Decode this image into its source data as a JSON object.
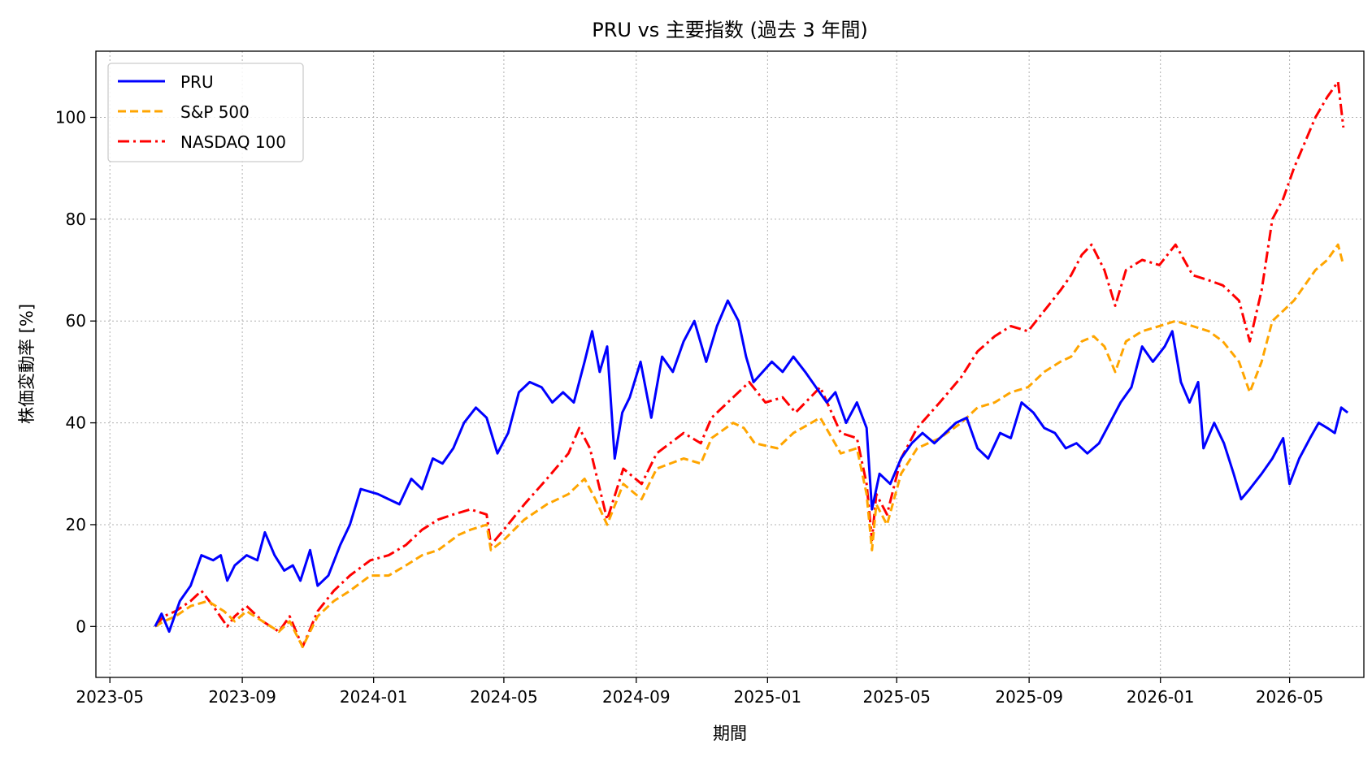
{
  "chart_data": {
    "type": "line",
    "title": "PRU vs 主要指数 (過去 3 年間)",
    "xlabel": "期間",
    "ylabel": "株価変動率 [%]",
    "ylim": [
      -10,
      113
    ],
    "xlim": [
      "2023-04-18",
      "2026-07-09"
    ],
    "grid": true,
    "legend_position": "top-left",
    "x_ticks": [
      "2023-05",
      "2023-09",
      "2024-01",
      "2024-05",
      "2024-09",
      "2025-01",
      "2025-05",
      "2025-09",
      "2026-01",
      "2026-05"
    ],
    "y_ticks": [
      0,
      20,
      40,
      60,
      80,
      100
    ],
    "series": [
      {
        "name": "PRU",
        "color": "#0000ff",
        "style": "solid",
        "points": [
          [
            "2023-06-12",
            0
          ],
          [
            "2023-06-18",
            2.5
          ],
          [
            "2023-06-25",
            -1
          ],
          [
            "2023-07-05",
            5
          ],
          [
            "2023-07-15",
            8
          ],
          [
            "2023-07-25",
            14
          ],
          [
            "2023-08-05",
            13
          ],
          [
            "2023-08-12",
            14
          ],
          [
            "2023-08-18",
            9
          ],
          [
            "2023-08-25",
            12
          ],
          [
            "2023-09-05",
            14
          ],
          [
            "2023-09-15",
            13
          ],
          [
            "2023-09-22",
            18.5
          ],
          [
            "2023-10-01",
            14
          ],
          [
            "2023-10-10",
            11
          ],
          [
            "2023-10-18",
            12
          ],
          [
            "2023-10-25",
            9
          ],
          [
            "2023-11-03",
            15
          ],
          [
            "2023-11-10",
            8
          ],
          [
            "2023-11-20",
            10
          ],
          [
            "2023-12-01",
            16
          ],
          [
            "2023-12-10",
            20
          ],
          [
            "2023-12-20",
            27
          ],
          [
            "2024-01-05",
            26
          ],
          [
            "2024-01-15",
            25
          ],
          [
            "2024-01-25",
            24
          ],
          [
            "2024-02-05",
            29
          ],
          [
            "2024-02-15",
            27
          ],
          [
            "2024-02-25",
            33
          ],
          [
            "2024-03-05",
            32
          ],
          [
            "2024-03-15",
            35
          ],
          [
            "2024-03-25",
            40
          ],
          [
            "2024-04-05",
            43
          ],
          [
            "2024-04-15",
            41
          ],
          [
            "2024-04-25",
            34
          ],
          [
            "2024-05-05",
            38
          ],
          [
            "2024-05-15",
            46
          ],
          [
            "2024-05-25",
            48
          ],
          [
            "2024-06-05",
            47
          ],
          [
            "2024-06-15",
            44
          ],
          [
            "2024-06-25",
            46
          ],
          [
            "2024-07-05",
            44
          ],
          [
            "2024-07-15",
            52
          ],
          [
            "2024-07-22",
            58
          ],
          [
            "2024-07-29",
            50
          ],
          [
            "2024-08-05",
            55
          ],
          [
            "2024-08-12",
            33
          ],
          [
            "2024-08-19",
            42
          ],
          [
            "2024-08-26",
            45
          ],
          [
            "2024-09-05",
            52
          ],
          [
            "2024-09-15",
            41
          ],
          [
            "2024-09-25",
            53
          ],
          [
            "2024-10-05",
            50
          ],
          [
            "2024-10-15",
            56
          ],
          [
            "2024-10-25",
            60
          ],
          [
            "2024-11-05",
            52
          ],
          [
            "2024-11-15",
            59
          ],
          [
            "2024-11-25",
            64
          ],
          [
            "2024-12-05",
            60
          ],
          [
            "2024-12-12",
            53
          ],
          [
            "2024-12-19",
            48
          ],
          [
            "2025-01-05",
            52
          ],
          [
            "2025-01-15",
            50
          ],
          [
            "2025-01-25",
            53
          ],
          [
            "2025-02-05",
            50
          ],
          [
            "2025-02-15",
            47
          ],
          [
            "2025-02-25",
            44
          ],
          [
            "2025-03-05",
            46
          ],
          [
            "2025-03-15",
            40
          ],
          [
            "2025-03-25",
            44
          ],
          [
            "2025-04-03",
            39
          ],
          [
            "2025-04-08",
            23
          ],
          [
            "2025-04-15",
            30
          ],
          [
            "2025-04-25",
            28
          ],
          [
            "2025-05-05",
            33
          ],
          [
            "2025-05-15",
            36
          ],
          [
            "2025-05-25",
            38
          ],
          [
            "2025-06-05",
            36
          ],
          [
            "2025-06-15",
            38
          ],
          [
            "2025-06-25",
            40
          ],
          [
            "2025-07-05",
            41
          ],
          [
            "2025-07-15",
            35
          ],
          [
            "2025-07-25",
            33
          ],
          [
            "2025-08-05",
            38
          ],
          [
            "2025-08-15",
            37
          ],
          [
            "2025-08-25",
            44
          ],
          [
            "2025-09-05",
            42
          ],
          [
            "2025-09-15",
            39
          ],
          [
            "2025-09-25",
            38
          ],
          [
            "2025-10-05",
            35
          ],
          [
            "2025-10-15",
            36
          ],
          [
            "2025-10-25",
            34
          ],
          [
            "2025-11-05",
            36
          ],
          [
            "2025-11-15",
            40
          ],
          [
            "2025-11-25",
            44
          ],
          [
            "2025-12-05",
            47
          ],
          [
            "2025-12-15",
            55
          ],
          [
            "2025-12-25",
            52
          ],
          [
            "2026-01-05",
            55
          ],
          [
            "2026-01-12",
            58
          ],
          [
            "2026-01-20",
            48
          ],
          [
            "2026-01-28",
            44
          ],
          [
            "2026-02-05",
            48
          ],
          [
            "2026-02-10",
            35
          ],
          [
            "2026-02-20",
            40
          ],
          [
            "2026-03-01",
            36
          ],
          [
            "2026-03-10",
            30
          ],
          [
            "2026-03-17",
            25
          ],
          [
            "2026-03-25",
            27
          ],
          [
            "2026-04-05",
            30
          ],
          [
            "2026-04-15",
            33
          ],
          [
            "2026-04-25",
            37
          ],
          [
            "2026-05-01",
            28
          ],
          [
            "2026-05-10",
            33
          ],
          [
            "2026-05-20",
            37
          ],
          [
            "2026-05-28",
            40
          ],
          [
            "2026-06-05",
            39
          ],
          [
            "2026-06-12",
            38
          ],
          [
            "2026-06-18",
            43
          ],
          [
            "2026-06-24",
            42
          ]
        ]
      },
      {
        "name": "S&P 500",
        "color": "#ffa500",
        "style": "dashed",
        "points": [
          [
            "2023-06-12",
            0
          ],
          [
            "2023-06-20",
            1
          ],
          [
            "2023-07-01",
            2
          ],
          [
            "2023-07-15",
            4
          ],
          [
            "2023-07-31",
            5
          ],
          [
            "2023-08-15",
            3
          ],
          [
            "2023-08-25",
            1
          ],
          [
            "2023-09-05",
            3
          ],
          [
            "2023-09-20",
            1
          ],
          [
            "2023-10-05",
            -1
          ],
          [
            "2023-10-15",
            1
          ],
          [
            "2023-10-27",
            -4
          ],
          [
            "2023-11-10",
            2
          ],
          [
            "2023-11-25",
            5
          ],
          [
            "2023-12-10",
            7
          ],
          [
            "2023-12-29",
            10
          ],
          [
            "2024-01-15",
            10
          ],
          [
            "2024-01-31",
            12
          ],
          [
            "2024-02-15",
            14
          ],
          [
            "2024-03-01",
            15
          ],
          [
            "2024-03-20",
            18
          ],
          [
            "2024-03-31",
            19
          ],
          [
            "2024-04-15",
            20
          ],
          [
            "2024-04-19",
            15
          ],
          [
            "2024-05-01",
            17
          ],
          [
            "2024-05-20",
            21
          ],
          [
            "2024-06-10",
            24
          ],
          [
            "2024-06-30",
            26
          ],
          [
            "2024-07-15",
            29
          ],
          [
            "2024-07-25",
            25
          ],
          [
            "2024-08-05",
            20
          ],
          [
            "2024-08-20",
            28
          ],
          [
            "2024-09-06",
            25
          ],
          [
            "2024-09-20",
            31
          ],
          [
            "2024-10-15",
            33
          ],
          [
            "2024-10-31",
            32
          ],
          [
            "2024-11-10",
            37
          ],
          [
            "2024-11-30",
            40
          ],
          [
            "2024-12-10",
            39
          ],
          [
            "2024-12-20",
            36
          ],
          [
            "2025-01-10",
            35
          ],
          [
            "2025-01-25",
            38
          ],
          [
            "2025-02-19",
            41
          ],
          [
            "2025-03-10",
            34
          ],
          [
            "2025-03-25",
            35
          ],
          [
            "2025-04-03",
            26
          ],
          [
            "2025-04-08",
            15
          ],
          [
            "2025-04-12",
            24
          ],
          [
            "2025-04-22",
            20
          ],
          [
            "2025-05-05",
            30
          ],
          [
            "2025-05-20",
            35
          ],
          [
            "2025-06-10",
            37
          ],
          [
            "2025-06-30",
            40
          ],
          [
            "2025-07-15",
            43
          ],
          [
            "2025-07-31",
            44
          ],
          [
            "2025-08-15",
            46
          ],
          [
            "2025-08-31",
            47
          ],
          [
            "2025-09-15",
            50
          ],
          [
            "2025-09-30",
            52
          ],
          [
            "2025-10-10",
            53
          ],
          [
            "2025-10-20",
            56
          ],
          [
            "2025-10-31",
            57
          ],
          [
            "2025-11-10",
            55
          ],
          [
            "2025-11-20",
            50
          ],
          [
            "2025-11-30",
            56
          ],
          [
            "2025-12-15",
            58
          ],
          [
            "2025-12-31",
            59
          ],
          [
            "2026-01-15",
            60
          ],
          [
            "2026-01-31",
            59
          ],
          [
            "2026-02-15",
            58
          ],
          [
            "2026-02-28",
            56
          ],
          [
            "2026-03-15",
            52
          ],
          [
            "2026-03-25",
            46
          ],
          [
            "2026-04-05",
            52
          ],
          [
            "2026-04-15",
            60
          ],
          [
            "2026-04-25",
            62
          ],
          [
            "2026-05-05",
            64
          ],
          [
            "2026-05-15",
            67
          ],
          [
            "2026-05-25",
            70
          ],
          [
            "2026-06-05",
            72
          ],
          [
            "2026-06-15",
            75
          ],
          [
            "2026-06-20",
            71
          ]
        ]
      },
      {
        "name": "NASDAQ 100",
        "color": "#ff0000",
        "style": "dashdot",
        "points": [
          [
            "2023-06-12",
            0
          ],
          [
            "2023-06-20",
            2
          ],
          [
            "2023-07-01",
            3
          ],
          [
            "2023-07-15",
            5
          ],
          [
            "2023-07-25",
            7
          ],
          [
            "2023-08-05",
            4
          ],
          [
            "2023-08-18",
            0
          ],
          [
            "2023-08-25",
            2
          ],
          [
            "2023-09-05",
            4
          ],
          [
            "2023-09-20",
            1
          ],
          [
            "2023-10-05",
            -1
          ],
          [
            "2023-10-15",
            2
          ],
          [
            "2023-10-27",
            -4
          ],
          [
            "2023-11-10",
            3
          ],
          [
            "2023-11-25",
            7
          ],
          [
            "2023-12-10",
            10
          ],
          [
            "2023-12-29",
            13
          ],
          [
            "2024-01-15",
            14
          ],
          [
            "2024-01-31",
            16
          ],
          [
            "2024-02-15",
            19
          ],
          [
            "2024-03-01",
            21
          ],
          [
            "2024-03-15",
            22
          ],
          [
            "2024-03-31",
            23
          ],
          [
            "2024-04-15",
            22
          ],
          [
            "2024-04-19",
            16
          ],
          [
            "2024-05-01",
            19
          ],
          [
            "2024-05-20",
            24
          ],
          [
            "2024-06-10",
            29
          ],
          [
            "2024-06-30",
            34
          ],
          [
            "2024-07-10",
            39
          ],
          [
            "2024-07-20",
            35
          ],
          [
            "2024-08-05",
            21
          ],
          [
            "2024-08-20",
            31
          ],
          [
            "2024-09-06",
            28
          ],
          [
            "2024-09-20",
            34
          ],
          [
            "2024-10-15",
            38
          ],
          [
            "2024-10-31",
            36
          ],
          [
            "2024-11-10",
            41
          ],
          [
            "2024-11-30",
            45
          ],
          [
            "2024-12-15",
            48
          ],
          [
            "2024-12-30",
            44
          ],
          [
            "2025-01-15",
            45
          ],
          [
            "2025-01-27",
            42
          ],
          [
            "2025-02-19",
            47
          ],
          [
            "2025-03-10",
            38
          ],
          [
            "2025-03-25",
            37
          ],
          [
            "2025-04-03",
            28
          ],
          [
            "2025-04-08",
            17
          ],
          [
            "2025-04-12",
            26
          ],
          [
            "2025-04-22",
            22
          ],
          [
            "2025-05-05",
            33
          ],
          [
            "2025-05-20",
            39
          ],
          [
            "2025-06-10",
            44
          ],
          [
            "2025-06-30",
            49
          ],
          [
            "2025-07-15",
            54
          ],
          [
            "2025-07-31",
            57
          ],
          [
            "2025-08-15",
            59
          ],
          [
            "2025-08-31",
            58
          ],
          [
            "2025-09-15",
            62
          ],
          [
            "2025-09-30",
            66
          ],
          [
            "2025-10-10",
            69
          ],
          [
            "2025-10-20",
            73
          ],
          [
            "2025-10-29",
            75
          ],
          [
            "2025-11-10",
            70
          ],
          [
            "2025-11-20",
            63
          ],
          [
            "2025-11-30",
            70
          ],
          [
            "2025-12-15",
            72
          ],
          [
            "2025-12-31",
            71
          ],
          [
            "2026-01-15",
            75
          ],
          [
            "2026-01-31",
            69
          ],
          [
            "2026-02-15",
            68
          ],
          [
            "2026-02-28",
            67
          ],
          [
            "2026-03-15",
            64
          ],
          [
            "2026-03-25",
            56
          ],
          [
            "2026-04-05",
            66
          ],
          [
            "2026-04-15",
            80
          ],
          [
            "2026-04-25",
            84
          ],
          [
            "2026-05-05",
            90
          ],
          [
            "2026-05-15",
            95
          ],
          [
            "2026-05-25",
            100
          ],
          [
            "2026-06-05",
            104
          ],
          [
            "2026-06-15",
            107
          ],
          [
            "2026-06-20",
            98
          ]
        ]
      }
    ]
  }
}
